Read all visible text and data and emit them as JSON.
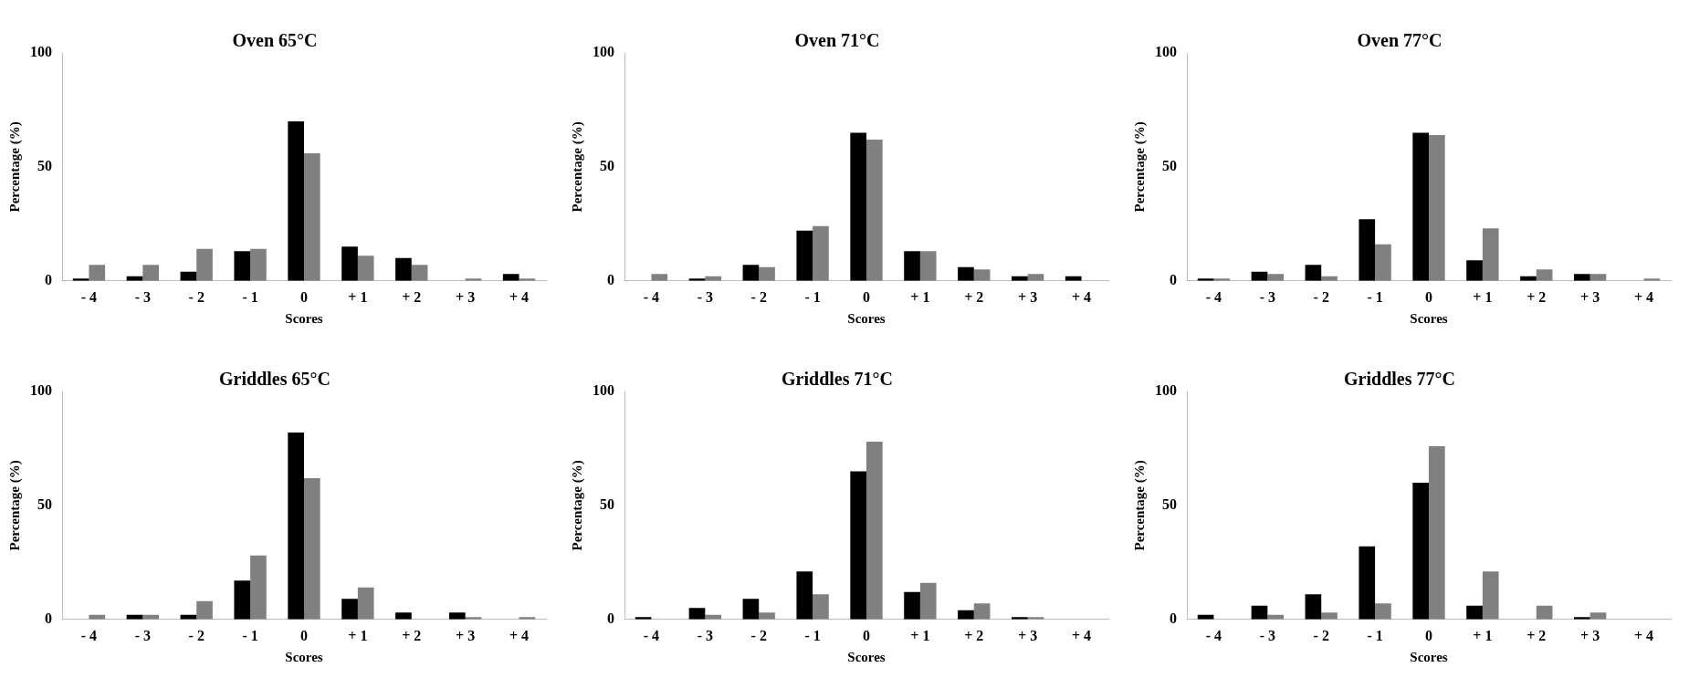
{
  "chart_data": [
    {
      "type": "bar",
      "title": "Oven 65°C",
      "xlabel": "Scores",
      "ylabel": "Percentage (%)",
      "categories": [
        "- 4",
        "- 3",
        "- 2",
        "- 1",
        "0",
        "+ 1",
        "+ 2",
        "+ 3",
        "+ 4"
      ],
      "series": [
        {
          "color": "#000000",
          "values": [
            1,
            2,
            4,
            13,
            70,
            15,
            10,
            0,
            3
          ]
        },
        {
          "color": "#808080",
          "values": [
            7,
            7,
            14,
            14,
            56,
            11,
            7,
            1,
            1
          ]
        }
      ],
      "ylim": [
        0,
        100
      ],
      "yticks": [
        0,
        50,
        100
      ],
      "grid": false,
      "legend": false
    },
    {
      "type": "bar",
      "title": "Oven 71°C",
      "xlabel": "Scores",
      "ylabel": "Percentage (%)",
      "categories": [
        "- 4",
        "- 3",
        "- 2",
        "- 1",
        "0",
        "+ 1",
        "+ 2",
        "+ 3",
        "+ 4"
      ],
      "series": [
        {
          "color": "#000000",
          "values": [
            0,
            1,
            7,
            22,
            65,
            13,
            6,
            2,
            2
          ]
        },
        {
          "color": "#808080",
          "values": [
            3,
            2,
            6,
            24,
            62,
            13,
            5,
            3,
            0
          ]
        }
      ],
      "ylim": [
        0,
        100
      ],
      "yticks": [
        0,
        50,
        100
      ],
      "grid": false,
      "legend": false
    },
    {
      "type": "bar",
      "title": "Oven 77°C",
      "xlabel": "Scores",
      "ylabel": "Percentage (%)",
      "categories": [
        "- 4",
        "- 3",
        "- 2",
        "- 1",
        "0",
        "+ 1",
        "+ 2",
        "+ 3",
        "+ 4"
      ],
      "series": [
        {
          "color": "#000000",
          "values": [
            1,
            4,
            7,
            27,
            65,
            9,
            2,
            3,
            0
          ]
        },
        {
          "color": "#808080",
          "values": [
            1,
            3,
            2,
            16,
            64,
            23,
            5,
            3,
            1
          ]
        }
      ],
      "ylim": [
        0,
        100
      ],
      "yticks": [
        0,
        50,
        100
      ],
      "grid": false,
      "legend": false
    },
    {
      "type": "bar",
      "title": "Griddles 65°C",
      "xlabel": "Scores",
      "ylabel": "Percentage (%)",
      "categories": [
        "- 4",
        "- 3",
        "- 2",
        "- 1",
        "0",
        "+ 1",
        "+ 2",
        "+ 3",
        "+ 4"
      ],
      "series": [
        {
          "color": "#000000",
          "values": [
            0,
            2,
            2,
            17,
            82,
            9,
            3,
            3,
            0
          ]
        },
        {
          "color": "#808080",
          "values": [
            2,
            2,
            8,
            28,
            62,
            14,
            0,
            1,
            1
          ]
        }
      ],
      "ylim": [
        0,
        100
      ],
      "yticks": [
        0,
        50,
        100
      ],
      "grid": false,
      "legend": false
    },
    {
      "type": "bar",
      "title": "Griddles 71°C",
      "xlabel": "Scores",
      "ylabel": "Percentage (%)",
      "categories": [
        "- 4",
        "- 3",
        "- 2",
        "- 1",
        "0",
        "+ 1",
        "+ 2",
        "+ 3",
        "+ 4"
      ],
      "series": [
        {
          "color": "#000000",
          "values": [
            1,
            5,
            9,
            21,
            65,
            12,
            4,
            1,
            0
          ]
        },
        {
          "color": "#808080",
          "values": [
            0,
            2,
            3,
            11,
            78,
            16,
            7,
            1,
            0
          ]
        }
      ],
      "ylim": [
        0,
        100
      ],
      "yticks": [
        0,
        50,
        100
      ],
      "grid": false,
      "legend": false
    },
    {
      "type": "bar",
      "title": "Griddles 77°C",
      "xlabel": "Scores",
      "ylabel": "Percentage (%)",
      "categories": [
        "- 4",
        "- 3",
        "- 2",
        "- 1",
        "0",
        "+ 1",
        "+ 2",
        "+ 3",
        "+ 4"
      ],
      "series": [
        {
          "color": "#000000",
          "values": [
            2,
            6,
            11,
            32,
            60,
            6,
            0,
            1,
            0
          ]
        },
        {
          "color": "#808080",
          "values": [
            0,
            2,
            3,
            7,
            76,
            21,
            6,
            3,
            0
          ]
        }
      ],
      "ylim": [
        0,
        100
      ],
      "yticks": [
        0,
        50,
        100
      ],
      "grid": false,
      "legend": false
    }
  ]
}
